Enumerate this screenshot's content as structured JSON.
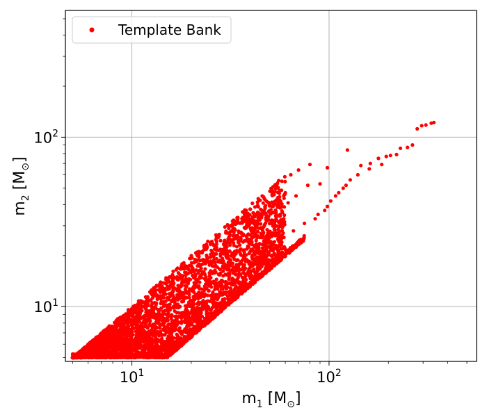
{
  "chart_data": {
    "type": "scatter",
    "x_scale": "log",
    "y_scale": "log",
    "xlim": [
      4.6,
      560
    ],
    "ylim": [
      4.75,
      560
    ],
    "grid": true,
    "legend_placement": "top-left",
    "colors": {
      "series": "#ff0000",
      "grid": "#b0b0b0",
      "axis": "#000000"
    },
    "x_ticks": [
      {
        "value": 10,
        "base": "10",
        "exp": "1"
      },
      {
        "value": 100,
        "base": "10",
        "exp": "2"
      }
    ],
    "y_ticks": [
      {
        "value": 10,
        "base": "10",
        "exp": "1"
      },
      {
        "value": 100,
        "base": "10",
        "exp": "2"
      }
    ],
    "xlabel": {
      "main": "m",
      "sub": "1",
      "unit": " [M",
      "unit_sub": "⊙",
      "close": "]"
    },
    "ylabel": {
      "main": "m",
      "sub": "2",
      "unit": " [M",
      "unit_sub": "⊙",
      "close": "]"
    },
    "series": [
      {
        "name": "Template Bank",
        "marker": "circle",
        "color": "#ff0000",
        "region": {
          "description_of_bulk_points": "dense cloud between bounds",
          "x_range": [
            5.0,
            160
          ],
          "min_y": 5.0,
          "upper_bound_ratio_min": 0.3,
          "lower_bound_y_equals_x_until": 5.0
        },
        "points": [
          {
            "x": 340,
            "y": 122
          },
          {
            "x": 330,
            "y": 121
          },
          {
            "x": 310,
            "y": 118
          },
          {
            "x": 295,
            "y": 117
          },
          {
            "x": 280,
            "y": 112
          },
          {
            "x": 265,
            "y": 90
          },
          {
            "x": 250,
            "y": 87
          },
          {
            "x": 230,
            "y": 86
          },
          {
            "x": 220,
            "y": 79
          },
          {
            "x": 205,
            "y": 78
          },
          {
            "x": 195,
            "y": 77
          },
          {
            "x": 178,
            "y": 75
          },
          {
            "x": 185,
            "y": 69
          },
          {
            "x": 162,
            "y": 70
          },
          {
            "x": 160,
            "y": 65
          },
          {
            "x": 145,
            "y": 68
          },
          {
            "x": 140,
            "y": 60
          },
          {
            "x": 124,
            "y": 84
          },
          {
            "x": 128,
            "y": 56
          },
          {
            "x": 122,
            "y": 52
          },
          {
            "x": 118,
            "y": 50
          },
          {
            "x": 112,
            "y": 47
          },
          {
            "x": 108,
            "y": 45
          },
          {
            "x": 102,
            "y": 42
          },
          {
            "x": 98,
            "y": 66
          },
          {
            "x": 98,
            "y": 39
          },
          {
            "x": 95,
            "y": 37
          },
          {
            "x": 90,
            "y": 53
          },
          {
            "x": 88,
            "y": 35
          },
          {
            "x": 85,
            "y": 33
          },
          {
            "x": 80,
            "y": 69
          },
          {
            "x": 78,
            "y": 52
          },
          {
            "x": 75,
            "y": 31
          },
          {
            "x": 70,
            "y": 64
          },
          {
            "x": 68,
            "y": 45
          },
          {
            "x": 66,
            "y": 28
          },
          {
            "x": 64,
            "y": 60
          },
          {
            "x": 62,
            "y": 41
          },
          {
            "x": 60,
            "y": 47
          },
          {
            "x": 58,
            "y": 36
          },
          {
            "x": 55,
            "y": 44
          },
          {
            "x": 52,
            "y": 51
          },
          {
            "x": 50,
            "y": 40
          },
          {
            "x": 48,
            "y": 33
          },
          {
            "x": 47,
            "y": 30
          },
          {
            "x": 45,
            "y": 35
          },
          {
            "x": 42,
            "y": 32
          },
          {
            "x": 40,
            "y": 29
          },
          {
            "x": 38,
            "y": 37
          },
          {
            "x": 36,
            "y": 27
          },
          {
            "x": 34,
            "y": 31
          },
          {
            "x": 33,
            "y": 25
          },
          {
            "x": 31,
            "y": 29
          },
          {
            "x": 30,
            "y": 24
          }
        ]
      }
    ]
  }
}
